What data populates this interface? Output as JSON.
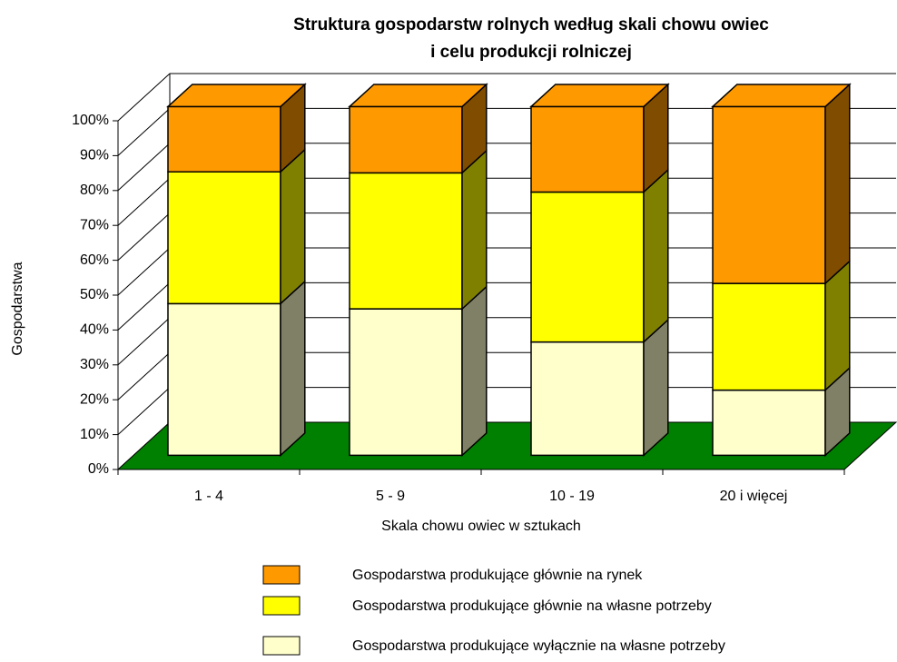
{
  "chart_data": {
    "type": "bar3d_stacked",
    "title": [
      "Struktura gospodarstw rolnych według skali chowu owiec",
      "i celu produkcji rolniczej"
    ],
    "xlabel": "Skala chowu owiec w sztukach",
    "ylabel": "Gospodarstwa",
    "categories": [
      "1 - 4",
      "5 - 9",
      "10 - 19",
      "20 i więcej"
    ],
    "series": [
      {
        "name": "Gospodarstwa produkujące wyłącznie na własne potrzeby",
        "color": "#ffffcc",
        "values": [
          43.5,
          42,
          32.5,
          18.7
        ]
      },
      {
        "name": "Gospodarstwa produkujące głównie na własne potrzeby",
        "color": "#ffff00",
        "values": [
          37.8,
          39,
          43,
          30.6
        ]
      },
      {
        "name": "Gospodarstwa produkujące głównie na rynek",
        "color": "#ff9900",
        "values": [
          18.7,
          19,
          24.5,
          50.7
        ]
      }
    ],
    "ylim": [
      0,
      100
    ],
    "yticks": [
      {
        "value": 0,
        "label": "0%"
      },
      {
        "value": 10,
        "label": "10%"
      },
      {
        "value": 20,
        "label": "20%"
      },
      {
        "value": 30,
        "label": "30%"
      },
      {
        "value": 40,
        "label": "40%"
      },
      {
        "value": 50,
        "label": "50%"
      },
      {
        "value": 60,
        "label": "60%"
      },
      {
        "value": 70,
        "label": "70%"
      },
      {
        "value": 80,
        "label": "80%"
      },
      {
        "value": 90,
        "label": "90%"
      },
      {
        "value": 100,
        "label": "100%"
      }
    ],
    "grid": true,
    "floor_color": "#008000"
  }
}
